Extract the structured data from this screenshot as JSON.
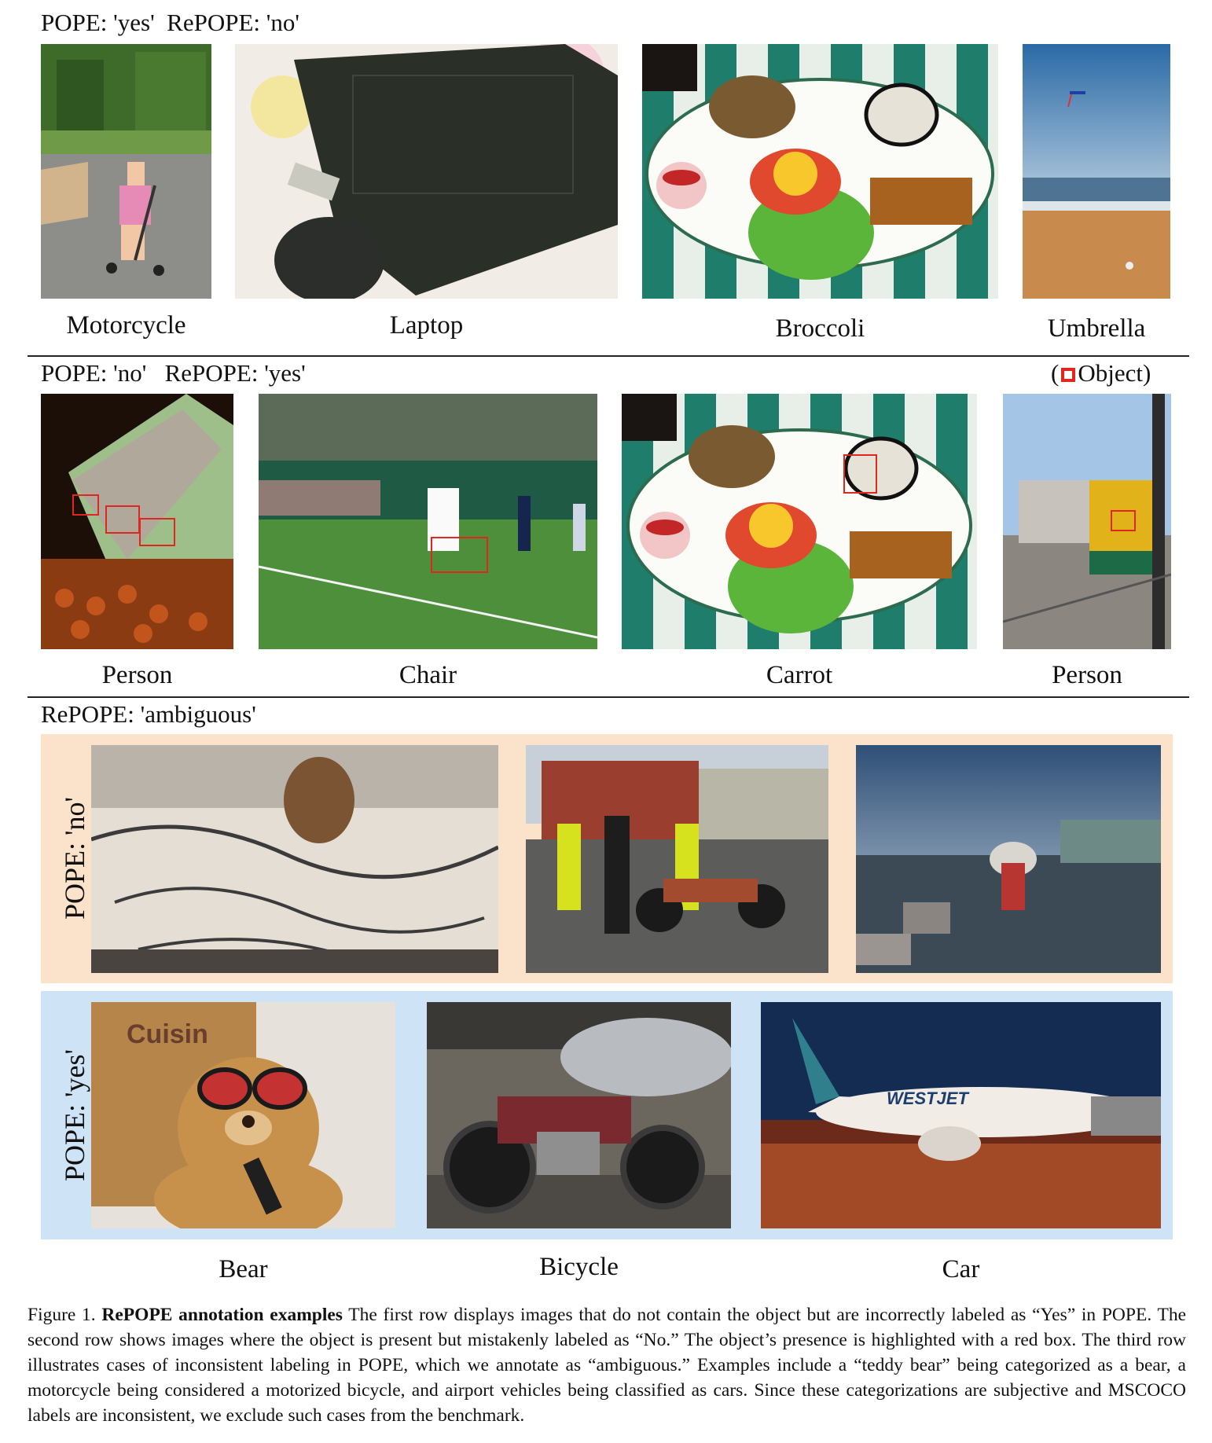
{
  "rows": [
    {
      "header": "POPE: 'yes'  RePOPE: 'no'",
      "images": [
        {
          "label": "Motorcycle"
        },
        {
          "label": "Laptop"
        },
        {
          "label": "Broccoli"
        },
        {
          "label": "Umbrella"
        }
      ]
    },
    {
      "header": "POPE: 'no'   RePOPE: 'yes'",
      "legend": {
        "open": "(",
        "text": "Object)"
      },
      "images": [
        {
          "label": "Person"
        },
        {
          "label": "Chair"
        },
        {
          "label": "Carrot"
        },
        {
          "label": "Person"
        }
      ]
    },
    {
      "header": "RePOPE: 'ambiguous'",
      "panels": [
        {
          "label": "POPE: 'no'",
          "color": "#fbe2cb"
        },
        {
          "label": "POPE: 'yes'",
          "color": "#cfe3f7"
        }
      ],
      "bottom_labels": [
        "Bear",
        "Bicycle",
        "Car"
      ]
    }
  ],
  "caption": {
    "prefix": "Figure 1.",
    "bold": "RePOPE annotation examples",
    "text": "The first row displays images that do not contain the object but are incorrectly labeled as “Yes” in POPE. The second row shows images where the object is present but mistakenly labeled as “No.” The object’s presence is highlighted with a red box. The third row illustrates cases of inconsistent labeling in POPE, which we annotate as “ambiguous.” Examples include a “teddy bear” being categorized as a bear, a motorcycle being considered a motorized bicycle, and airport vehicles being classified as cars. Since these categorizations are subjective and MSCOCO labels are inconsistent, we exclude such cases from the benchmark."
  },
  "colors": {
    "box": "#e0271f",
    "panel_no": "#fbe2cb",
    "panel_yes": "#cfe3f7"
  }
}
